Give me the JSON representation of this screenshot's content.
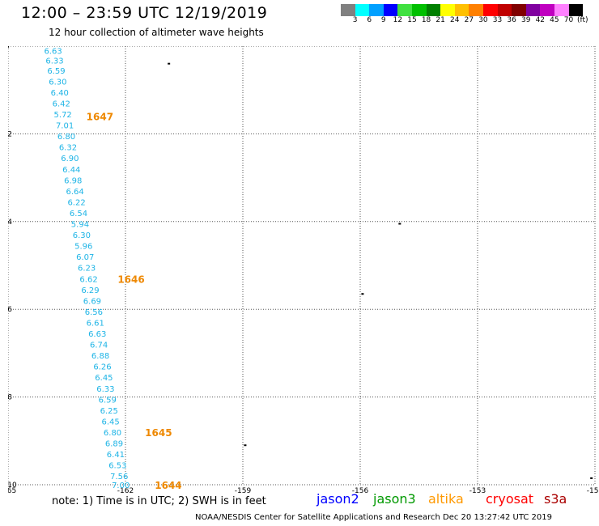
{
  "header": {
    "title": "12:00 – 23:59 UTC 12/19/2019",
    "subtitle": "12 hour collection of altimeter wave heights"
  },
  "colorbar": {
    "colors": [
      "#808080",
      "#00ffff",
      "#00a0ff",
      "#0000ff",
      "#40e040",
      "#00c000",
      "#008000",
      "#ffff00",
      "#ffc000",
      "#ff8000",
      "#ff0000",
      "#c00000",
      "#800000",
      "#8000a0",
      "#c000c0",
      "#ff80ff",
      "#000000"
    ],
    "labels": [
      "3",
      "6",
      "9",
      "12",
      "15",
      "18",
      "21",
      "24",
      "27",
      "30",
      "33",
      "36",
      "39",
      "42",
      "45",
      "70"
    ],
    "unit": "(ft)"
  },
  "map": {
    "lon_range": [
      -165,
      -150
    ],
    "lat_range": [
      -10,
      0
    ],
    "x_ticks": [
      "-165",
      "-162",
      "-159",
      "-156",
      "-153",
      "-150"
    ],
    "y_ticks": [
      "0",
      "-2",
      "-4",
      "-6",
      "-8",
      "-10"
    ],
    "track_color": "#1eb4e6",
    "time_color": "#ee8800",
    "swh_points": [
      {
        "lat": -0.1,
        "lon": -163.85,
        "value": "6.63"
      },
      {
        "lat": -0.32,
        "lon": -163.81,
        "value": "6.33"
      },
      {
        "lat": -0.55,
        "lon": -163.77,
        "value": "6.59"
      },
      {
        "lat": -0.8,
        "lon": -163.73,
        "value": "6.30"
      },
      {
        "lat": -1.05,
        "lon": -163.68,
        "value": "6.40"
      },
      {
        "lat": -1.3,
        "lon": -163.64,
        "value": "6.42"
      },
      {
        "lat": -1.55,
        "lon": -163.6,
        "value": "5.72"
      },
      {
        "lat": -1.8,
        "lon": -163.55,
        "value": "7.01"
      },
      {
        "lat": -2.05,
        "lon": -163.51,
        "value": "6.80"
      },
      {
        "lat": -2.3,
        "lon": -163.47,
        "value": "6.32"
      },
      {
        "lat": -2.55,
        "lon": -163.42,
        "value": "6.90"
      },
      {
        "lat": -2.8,
        "lon": -163.38,
        "value": "6.44"
      },
      {
        "lat": -3.05,
        "lon": -163.34,
        "value": "6.98"
      },
      {
        "lat": -3.3,
        "lon": -163.29,
        "value": "6.64"
      },
      {
        "lat": -3.55,
        "lon": -163.25,
        "value": "6.22"
      },
      {
        "lat": -3.8,
        "lon": -163.2,
        "value": "6.54"
      },
      {
        "lat": -4.05,
        "lon": -163.16,
        "value": "5.94"
      },
      {
        "lat": -4.3,
        "lon": -163.12,
        "value": "6.30"
      },
      {
        "lat": -4.55,
        "lon": -163.07,
        "value": "5.96"
      },
      {
        "lat": -4.8,
        "lon": -163.03,
        "value": "6.07"
      },
      {
        "lat": -5.05,
        "lon": -162.99,
        "value": "6.23"
      },
      {
        "lat": -5.3,
        "lon": -162.94,
        "value": "6.62"
      },
      {
        "lat": -5.55,
        "lon": -162.9,
        "value": "6.29"
      },
      {
        "lat": -5.8,
        "lon": -162.85,
        "value": "6.69"
      },
      {
        "lat": -6.05,
        "lon": -162.81,
        "value": "6.56"
      },
      {
        "lat": -6.3,
        "lon": -162.77,
        "value": "6.61"
      },
      {
        "lat": -6.55,
        "lon": -162.72,
        "value": "6.63"
      },
      {
        "lat": -6.8,
        "lon": -162.68,
        "value": "6.74"
      },
      {
        "lat": -7.05,
        "lon": -162.64,
        "value": "6.88"
      },
      {
        "lat": -7.3,
        "lon": -162.59,
        "value": "6.26"
      },
      {
        "lat": -7.55,
        "lon": -162.55,
        "value": "6.45"
      },
      {
        "lat": -7.8,
        "lon": -162.51,
        "value": "6.33"
      },
      {
        "lat": -8.05,
        "lon": -162.46,
        "value": "6.59"
      },
      {
        "lat": -8.3,
        "lon": -162.42,
        "value": "6.25"
      },
      {
        "lat": -8.55,
        "lon": -162.38,
        "value": "6.45"
      },
      {
        "lat": -8.8,
        "lon": -162.33,
        "value": "6.80"
      },
      {
        "lat": -9.05,
        "lon": -162.29,
        "value": "6.89"
      },
      {
        "lat": -9.3,
        "lon": -162.25,
        "value": "6.41"
      },
      {
        "lat": -9.55,
        "lon": -162.2,
        "value": "6.53"
      },
      {
        "lat": -9.8,
        "lon": -162.16,
        "value": "7.56"
      },
      {
        "lat": -10.0,
        "lon": -162.12,
        "value": "7.00"
      }
    ],
    "time_labels": [
      {
        "lat": -1.6,
        "lon": -163.0,
        "value": "1647"
      },
      {
        "lat": -5.3,
        "lon": -162.2,
        "value": "1646"
      },
      {
        "lat": -8.8,
        "lon": -161.5,
        "value": "1645"
      },
      {
        "lat": -10.0,
        "lon": -161.25,
        "value": "1644"
      }
    ],
    "islands": [
      {
        "lat": -0.4,
        "lon": -160.9
      },
      {
        "lat": -4.05,
        "lon": -155.0
      },
      {
        "lat": -5.65,
        "lon": -155.95
      },
      {
        "lat": -9.1,
        "lon": -158.95
      },
      {
        "lat": -9.85,
        "lon": -150.1
      }
    ]
  },
  "note": "note: 1) Time is in UTC; 2) SWH is in feet",
  "satellites": [
    {
      "name": "jason2",
      "color": "#0000ff"
    },
    {
      "name": "jason3",
      "color": "#009900"
    },
    {
      "name": "altika",
      "color": "#ff9900"
    },
    {
      "name": "cryosat",
      "color": "#ff0000"
    },
    {
      "name": "s3a",
      "color": "#aa0000"
    }
  ],
  "footer": "NOAA/NESDIS Center for Satellite Applications and Research    Dec 20 13:27:42 UTC 2019"
}
